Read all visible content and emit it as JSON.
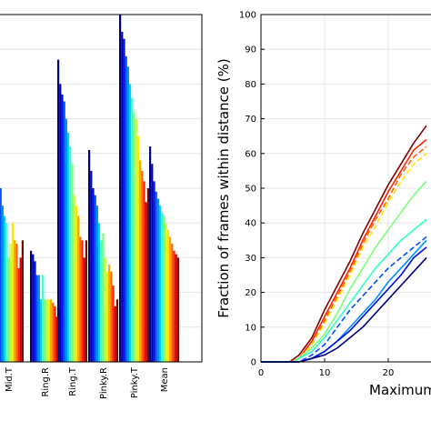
{
  "chart_data": [
    {
      "type": "bar",
      "categories": [
        "Mid.T",
        "Ring.R",
        "Ring.T",
        "Pinky.R",
        "Pinky.T",
        "Mean"
      ],
      "series_colors": [
        "#00007f",
        "#0000b0",
        "#0010e8",
        "#0050ff",
        "#0090ff",
        "#00d0ff",
        "#30ffc7",
        "#7bff7b",
        "#c7ff30",
        "#ffe500",
        "#ffa600",
        "#ff6300",
        "#ff2300",
        "#c80000",
        "#800000"
      ],
      "values": [
        [
          56,
          50,
          48,
          50,
          45,
          42,
          40,
          30,
          34,
          40,
          35,
          34,
          27,
          30,
          35
        ],
        [
          32,
          31,
          29,
          25,
          25,
          18,
          25,
          18,
          18,
          18,
          18,
          17,
          16,
          13,
          15
        ],
        [
          87,
          80,
          77,
          75,
          70,
          66,
          62,
          57,
          48,
          45,
          42,
          36,
          35,
          30,
          35
        ],
        [
          61,
          55,
          50,
          48,
          45,
          40,
          35,
          37,
          30,
          26,
          28,
          26,
          22,
          16,
          18
        ],
        [
          100,
          95,
          93,
          88,
          85,
          80,
          76,
          72,
          70,
          65,
          58,
          55,
          52,
          46,
          50
        ],
        [
          62,
          57,
          52,
          49,
          47,
          45,
          43,
          42,
          40,
          38,
          36,
          34,
          32,
          31,
          30
        ]
      ],
      "ylim": [
        0,
        100
      ],
      "grid": true
    },
    {
      "type": "line",
      "ylabel": "Fraction of frames within distance (%)",
      "xlabel": "Maximum",
      "xlim": [
        0,
        26
      ],
      "ylim": [
        0,
        100
      ],
      "xticks": [
        "0",
        "10",
        "20"
      ],
      "yticks": [
        "0",
        "10",
        "20",
        "30",
        "40",
        "50",
        "60",
        "70",
        "80",
        "90",
        "100"
      ],
      "grid": true,
      "series": [
        {
          "color": "#800000",
          "dash": false,
          "x": [
            0,
            4.5,
            6,
            8,
            10,
            12,
            14,
            16,
            18,
            20,
            22,
            24,
            26
          ],
          "y": [
            0,
            0,
            2,
            7,
            15,
            22,
            29,
            37,
            44,
            51,
            57,
            63,
            68
          ]
        },
        {
          "color": "#ff2300",
          "dash": false,
          "x": [
            0,
            4.5,
            6,
            8,
            10,
            12,
            14,
            16,
            18,
            20,
            22,
            24,
            26
          ],
          "y": [
            0,
            0,
            1,
            6,
            13,
            20,
            27,
            35,
            42,
            49,
            55,
            61,
            64
          ]
        },
        {
          "color": "#ff6300",
          "dash": true,
          "x": [
            0,
            4.5,
            6,
            8,
            10,
            12,
            14,
            16,
            18,
            20,
            22,
            24,
            26
          ],
          "y": [
            0,
            0,
            1,
            5,
            12,
            19,
            26,
            34,
            41,
            47,
            54,
            59,
            62
          ]
        },
        {
          "color": "#ffe500",
          "dash": true,
          "x": [
            0,
            4.5,
            6,
            8,
            10,
            12,
            14,
            16,
            18,
            20,
            22,
            24,
            26
          ],
          "y": [
            0,
            0,
            1,
            5,
            11,
            18,
            25,
            33,
            39,
            46,
            52,
            57,
            60
          ]
        },
        {
          "color": "#7bff7b",
          "dash": false,
          "x": [
            0,
            5,
            6,
            8,
            10,
            12,
            14,
            16,
            18,
            20,
            22,
            24,
            26
          ],
          "y": [
            0,
            0,
            1,
            4,
            8,
            14,
            21,
            27,
            33,
            38,
            43,
            48,
            52
          ]
        },
        {
          "color": "#30ffc7",
          "dash": false,
          "x": [
            0,
            5,
            6,
            8,
            10,
            12,
            14,
            16,
            18,
            20,
            22,
            24,
            26
          ],
          "y": [
            0,
            0,
            1,
            3,
            7,
            12,
            17,
            22,
            27,
            31,
            35,
            38,
            41
          ]
        },
        {
          "color": "#0050ff",
          "dash": true,
          "x": [
            0,
            5,
            6,
            8,
            10,
            12,
            14,
            16,
            18,
            20,
            22,
            24,
            26
          ],
          "y": [
            0,
            0,
            0,
            2,
            5,
            10,
            15,
            19,
            23,
            27,
            30,
            33,
            36
          ]
        },
        {
          "color": "#0090ff",
          "dash": false,
          "x": [
            0,
            5,
            6,
            8,
            10,
            12,
            14,
            16,
            18,
            20,
            22,
            24,
            26
          ],
          "y": [
            0,
            0,
            0,
            1,
            3,
            6,
            10,
            14,
            18,
            23,
            27,
            31,
            35
          ]
        },
        {
          "color": "#0010e8",
          "dash": false,
          "x": [
            0,
            5,
            6,
            8,
            10,
            12,
            14,
            16,
            18,
            20,
            22,
            24,
            26
          ],
          "y": [
            0,
            0,
            0,
            1,
            3,
            6,
            9,
            13,
            17,
            21,
            25,
            30,
            33
          ]
        },
        {
          "color": "#00007f",
          "dash": false,
          "x": [
            0,
            5,
            6,
            8,
            10,
            12,
            14,
            16,
            18,
            20,
            22,
            24,
            26
          ],
          "y": [
            0,
            0,
            0,
            1,
            2,
            4,
            7,
            10,
            14,
            18,
            22,
            26,
            30
          ]
        }
      ]
    }
  ]
}
